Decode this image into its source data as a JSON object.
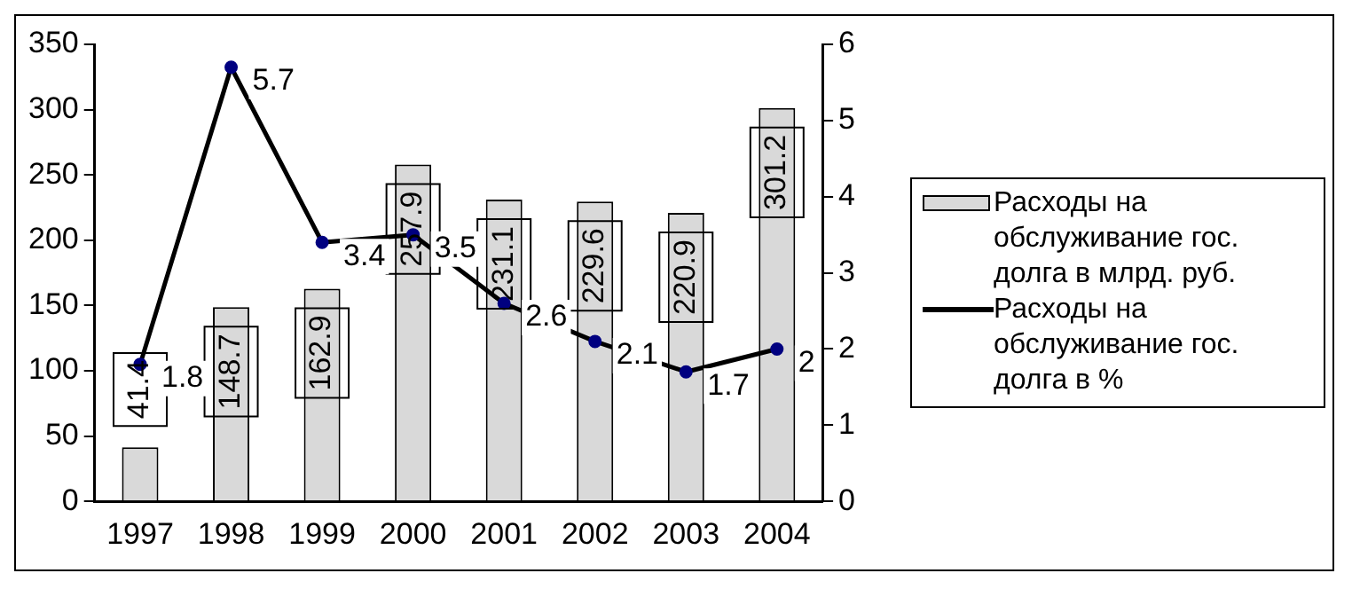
{
  "chart_data": {
    "type": "bar",
    "categories": [
      "1997",
      "1998",
      "1999",
      "2000",
      "2001",
      "2002",
      "2003",
      "2004"
    ],
    "series": [
      {
        "name": "Расходы на обслуживание гос. долга в млрд. руб.",
        "color": "#d9d9d9",
        "values": [
          41.4,
          148.7,
          162.9,
          257.9,
          231.1,
          229.6,
          220.9,
          301.2
        ]
      },
      {
        "name": "Расходы на обслуживание гос. долга в %",
        "type": "line",
        "axis": "y2",
        "color": "#000000",
        "values": [
          1.8,
          5.7,
          3.4,
          3.5,
          2.6,
          2.1,
          1.7,
          2
        ]
      }
    ],
    "ylim": [
      0,
      350
    ],
    "yticks": [
      0,
      50,
      100,
      150,
      200,
      250,
      300,
      350
    ],
    "y2lim": [
      0,
      6
    ],
    "y2ticks": [
      0,
      1,
      2,
      3,
      4,
      5,
      6
    ],
    "data_labels": true,
    "legend": "right",
    "marker": "circle",
    "line_style": "solid",
    "grid": false
  }
}
